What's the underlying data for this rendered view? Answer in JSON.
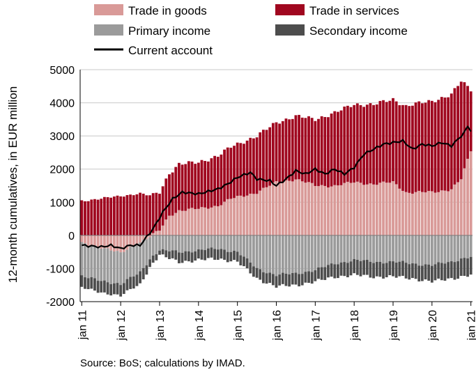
{
  "chart_data": {
    "type": "bar",
    "stacked": true,
    "ylabel": "12-month cumulatives, in EUR million",
    "ylim": [
      -2000,
      5000
    ],
    "yticks": [
      -2000,
      -1000,
      0,
      1000,
      2000,
      3000,
      4000,
      5000
    ],
    "ytick_labels": [
      "-2000",
      "-1000",
      "0",
      "1000",
      "2000",
      "3000",
      "4000",
      "5000"
    ],
    "x_tick_labels": [
      "jan 11",
      "jan 12",
      "jan 13",
      "jan 14",
      "jan 15",
      "jan 16",
      "jan 17",
      "jan 18",
      "jan 19",
      "jan 20",
      "jan 21"
    ],
    "frequency": "monthly",
    "x_start": "2011-01",
    "x_end": "2021-01",
    "legend_position": "top",
    "colors": {
      "Trade in goods": "#d99a98",
      "Trade in services": "#a0071f",
      "Primary income": "#9b9b9b",
      "Secondary income": "#4d4d4d",
      "Current account": "#000000"
    },
    "anchors_goods": [
      [
        0,
        -250
      ],
      [
        6,
        -350
      ],
      [
        12,
        -550
      ],
      [
        16,
        -300
      ],
      [
        20,
        -100
      ],
      [
        24,
        150
      ],
      [
        27,
        600
      ],
      [
        30,
        750
      ],
      [
        36,
        800
      ],
      [
        42,
        900
      ],
      [
        46,
        1100
      ],
      [
        48,
        1150
      ],
      [
        54,
        1300
      ],
      [
        60,
        1600
      ],
      [
        66,
        1700
      ],
      [
        72,
        1500
      ],
      [
        78,
        1500
      ],
      [
        84,
        1600
      ],
      [
        90,
        1550
      ],
      [
        96,
        1600
      ],
      [
        100,
        1300
      ],
      [
        108,
        1300
      ],
      [
        114,
        1400
      ],
      [
        117,
        1700
      ],
      [
        120,
        2550
      ]
    ],
    "anchors_services": [
      [
        0,
        1050
      ],
      [
        6,
        1100
      ],
      [
        12,
        1200
      ],
      [
        18,
        1250
      ],
      [
        24,
        1150
      ],
      [
        30,
        1400
      ],
      [
        36,
        1400
      ],
      [
        42,
        1500
      ],
      [
        48,
        1600
      ],
      [
        54,
        1700
      ],
      [
        60,
        1800
      ],
      [
        66,
        1900
      ],
      [
        72,
        2000
      ],
      [
        78,
        2200
      ],
      [
        84,
        2350
      ],
      [
        90,
        2400
      ],
      [
        96,
        2500
      ],
      [
        102,
        2650
      ],
      [
        108,
        2750
      ],
      [
        114,
        2850
      ],
      [
        117,
        2950
      ],
      [
        120,
        1850
      ]
    ],
    "anchors_primary": [
      [
        0,
        -1000
      ],
      [
        6,
        -1000
      ],
      [
        12,
        -950
      ],
      [
        18,
        -900
      ],
      [
        24,
        -450
      ],
      [
        30,
        -500
      ],
      [
        36,
        -450
      ],
      [
        42,
        -400
      ],
      [
        48,
        -500
      ],
      [
        54,
        -1000
      ],
      [
        60,
        -1200
      ],
      [
        66,
        -1150
      ],
      [
        72,
        -1050
      ],
      [
        78,
        -850
      ],
      [
        84,
        -750
      ],
      [
        90,
        -800
      ],
      [
        96,
        -800
      ],
      [
        102,
        -850
      ],
      [
        108,
        -900
      ],
      [
        114,
        -800
      ],
      [
        117,
        -700
      ],
      [
        120,
        -650
      ]
    ],
    "anchors_secondary": [
      [
        0,
        -350
      ],
      [
        6,
        -350
      ],
      [
        12,
        -350
      ],
      [
        18,
        -350
      ],
      [
        24,
        -150
      ],
      [
        30,
        -300
      ],
      [
        36,
        -300
      ],
      [
        42,
        -300
      ],
      [
        48,
        -300
      ],
      [
        54,
        -300
      ],
      [
        60,
        -350
      ],
      [
        66,
        -350
      ],
      [
        72,
        -350
      ],
      [
        78,
        -400
      ],
      [
        84,
        -450
      ],
      [
        90,
        -450
      ],
      [
        96,
        -450
      ],
      [
        102,
        -450
      ],
      [
        108,
        -500
      ],
      [
        114,
        -500
      ],
      [
        117,
        -550
      ],
      [
        120,
        -550
      ]
    ],
    "anchors_current": [
      [
        0,
        -300
      ],
      [
        6,
        -350
      ],
      [
        9,
        -300
      ],
      [
        12,
        -400
      ],
      [
        15,
        -300
      ],
      [
        18,
        -300
      ],
      [
        22,
        200
      ],
      [
        25,
        700
      ],
      [
        28,
        1100
      ],
      [
        31,
        1300
      ],
      [
        36,
        1250
      ],
      [
        40,
        1350
      ],
      [
        42,
        1400
      ],
      [
        45,
        1550
      ],
      [
        48,
        1750
      ],
      [
        52,
        1900
      ],
      [
        54,
        1700
      ],
      [
        58,
        1650
      ],
      [
        60,
        1500
      ],
      [
        63,
        1700
      ],
      [
        66,
        1950
      ],
      [
        69,
        1850
      ],
      [
        72,
        2000
      ],
      [
        75,
        1850
      ],
      [
        78,
        2000
      ],
      [
        81,
        1850
      ],
      [
        84,
        2050
      ],
      [
        87,
        2450
      ],
      [
        90,
        2600
      ],
      [
        93,
        2750
      ],
      [
        96,
        2800
      ],
      [
        99,
        2850
      ],
      [
        102,
        2600
      ],
      [
        105,
        2750
      ],
      [
        108,
        2700
      ],
      [
        111,
        2800
      ],
      [
        114,
        2700
      ],
      [
        116,
        2900
      ],
      [
        118,
        3100
      ],
      [
        119,
        3300
      ],
      [
        120,
        3150
      ]
    ],
    "series": [
      {
        "name": "Trade in goods",
        "kind": "bar"
      },
      {
        "name": "Trade in services",
        "kind": "bar"
      },
      {
        "name": "Primary income",
        "kind": "bar"
      },
      {
        "name": "Secondary income",
        "kind": "bar"
      },
      {
        "name": "Current account",
        "kind": "line"
      }
    ],
    "source": "Source: BoS; calculations by IMAD."
  }
}
